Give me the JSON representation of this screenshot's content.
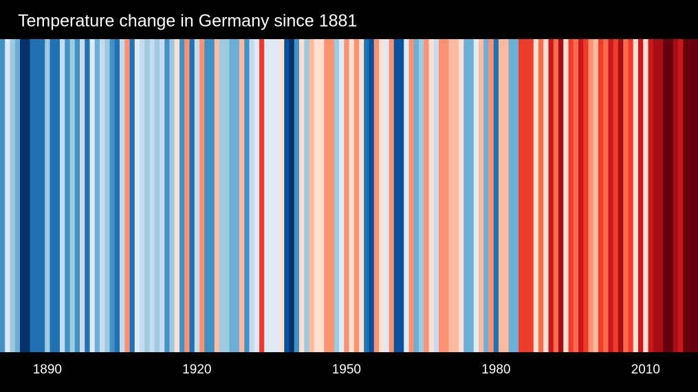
{
  "chart_data": {
    "type": "stripes",
    "title": "Temperature change in Germany since 1881",
    "x": [
      1881,
      1882,
      1883,
      1884,
      1885,
      1886,
      1887,
      1888,
      1889,
      1890,
      1891,
      1892,
      1893,
      1894,
      1895,
      1896,
      1897,
      1898,
      1899,
      1900,
      1901,
      1902,
      1903,
      1904,
      1905,
      1906,
      1907,
      1908,
      1909,
      1910,
      1911,
      1912,
      1913,
      1914,
      1915,
      1916,
      1917,
      1918,
      1919,
      1920,
      1921,
      1922,
      1923,
      1924,
      1925,
      1926,
      1927,
      1928,
      1929,
      1930,
      1931,
      1932,
      1933,
      1934,
      1935,
      1936,
      1937,
      1938,
      1939,
      1940,
      1941,
      1942,
      1943,
      1944,
      1945,
      1946,
      1947,
      1948,
      1949,
      1950,
      1951,
      1952,
      1953,
      1954,
      1955,
      1956,
      1957,
      1958,
      1959,
      1960,
      1961,
      1962,
      1963,
      1964,
      1965,
      1966,
      1967,
      1968,
      1969,
      1970,
      1971,
      1972,
      1973,
      1974,
      1975,
      1976,
      1977,
      1978,
      1979,
      1980,
      1981,
      1982,
      1983,
      1984,
      1985,
      1986,
      1987,
      1988,
      1989,
      1990,
      1991,
      1992,
      1993,
      1994,
      1995,
      1996,
      1997,
      1998,
      1999,
      2000,
      2001,
      2002,
      2003,
      2004,
      2005,
      2006,
      2007,
      2008,
      2009,
      2010,
      2011,
      2012,
      2013,
      2014,
      2015,
      2016,
      2017,
      2018,
      2019,
      2020
    ],
    "colors": [
      "#4292c6",
      "#deebf7",
      "#9ecae1",
      "#6baed6",
      "#08306b",
      "#08306b",
      "#2171b5",
      "#2171b5",
      "#2171b5",
      "#9ecae1",
      "#2171b5",
      "#2171b5",
      "#c6dbef",
      "#4292c6",
      "#9ecae1",
      "#4292c6",
      "#c6dbef",
      "#2171b5",
      "#deebf7",
      "#6baed6",
      "#c6dbef",
      "#9ecae1",
      "#4292c6",
      "#2171b5",
      "#c6dbef",
      "#fc9272",
      "#2171b5",
      "#deebf7",
      "#c6dbef",
      "#9ecae1",
      "#c6dbef",
      "#9ecae1",
      "#c6dbef",
      "#4292c6",
      "#9ecae1",
      "#fee0d2",
      "#4292c6",
      "#fc9272",
      "#2171b5",
      "#c6dbef",
      "#fc9272",
      "#4292c6",
      "#4292c6",
      "#fcbba1",
      "#9ecae1",
      "#9ecae1",
      "#6baed6",
      "#6baed6",
      "#fcbba1",
      "#4292c6",
      "#c6dbef",
      "#deebf7",
      "#ef3b2c",
      "#deebf7",
      "#deebf7",
      "#deebf7",
      "#fee0d2",
      "#08519c",
      "#08306b",
      "#4292c6",
      "#fee0d2",
      "#9ecae1",
      "#fcbba1",
      "#fee0d2",
      "#fee0d2",
      "#fc9272",
      "#fc9272",
      "#9ecae1",
      "#deebf7",
      "#fc9272",
      "#fee0d2",
      "#fc9272",
      "#fee0d2",
      "#2171b5",
      "#08519c",
      "#fc9272",
      "#fee0d2",
      "#deebf7",
      "#fc9272",
      "#08519c",
      "#08519c",
      "#deebf7",
      "#fc9272",
      "#6baed6",
      "#9ecae1",
      "#fc9272",
      "#fee0d2",
      "#c6dbef",
      "#fc9272",
      "#fc9272",
      "#fcbba1",
      "#fcbba1",
      "#fee0d2",
      "#6baed6",
      "#6baed6",
      "#deebf7",
      "#fcbba1",
      "#6baed6",
      "#fc9272",
      "#2171b5",
      "#fcbba1",
      "#fcbba1",
      "#6baed6",
      "#6baed6",
      "#ef3b2c",
      "#ef3b2c",
      "#ef3b2c",
      "#fee0d2",
      "#fb6a4a",
      "#fee0d2",
      "#cb181d",
      "#fb6a4a",
      "#a50f15",
      "#fee0d2",
      "#ef3b2c",
      "#fb6a4a",
      "#cb181d",
      "#ef3b2c",
      "#fc9272",
      "#fcbba1",
      "#ef3b2c",
      "#fb6a4a",
      "#cb181d",
      "#ef3b2c",
      "#a50f15",
      "#fb6a4a",
      "#ef3b2c",
      "#fee0d2",
      "#cb181d",
      "#fee0d2",
      "#cb181d",
      "#a50f15",
      "#a50f15",
      "#67000d",
      "#67000d",
      "#a50f15",
      "#cb181d",
      "#67000d",
      "#67000d",
      "#67000d"
    ],
    "xlim": [
      1881,
      2021
    ],
    "xticks": [
      1890,
      1920,
      1950,
      1980,
      2010
    ]
  }
}
